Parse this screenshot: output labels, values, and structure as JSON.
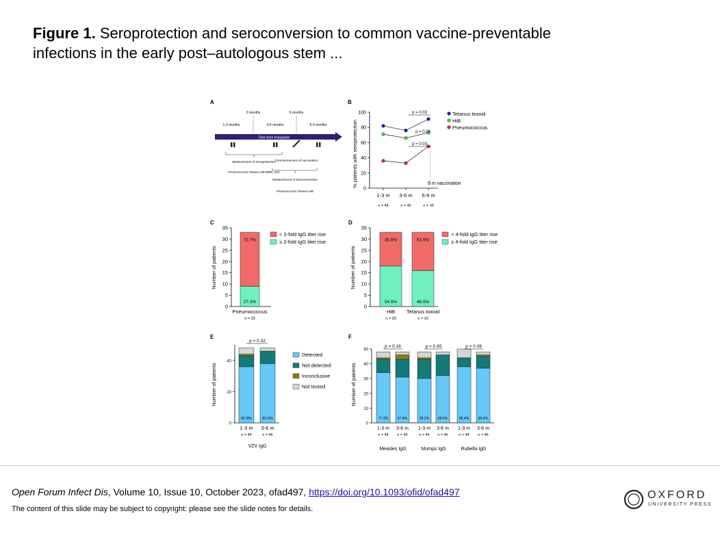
{
  "slide": {
    "figure_label": "Figure 1.",
    "title": "Seroprotection and seroconversion to common vaccine-preventable infections in the early post–autologous stem ...",
    "citation_journal": "Open Forum Infect Dis",
    "citation_details": ", Volume 10, Issue 10, October 2023, ofad497, ",
    "citation_link": "https://doi.org/10.1093/ofid/ofad497",
    "copyright": "The content of this slide may be subject to copyright: please see the slide notes for details.",
    "publisher": "OXFORD",
    "publisher_sub": "UNIVERSITY PRESS"
  },
  "panelA": {
    "label": "A",
    "month_3": "3 months",
    "month_6": "6 months",
    "period_1": "1-3 months",
    "period_2": "3-6 months",
    "period_3": "6-9 months",
    "arrow_text": "Time from transplant",
    "box1_title": "Measurement of seroprotection",
    "box1_items": "Pneumococcus Tetanus HiB MMR, VZV",
    "box2_title": "Commencement of vaccination",
    "box3_title": "Measurement of seroconversion",
    "box3_items": "Pneumococcus Tetanus HiB"
  },
  "chart_data": [
    {
      "panel": "B",
      "type": "line",
      "ylabel": "% patients with seroprotection",
      "categories": [
        "1-3 m",
        "3-6 m",
        "6-9 m"
      ],
      "n_labels": [
        "n = 44",
        "n = 46",
        "n = 33"
      ],
      "ylim": [
        0,
        100
      ],
      "yticks": [
        0,
        20,
        40,
        60,
        80,
        100
      ],
      "series": [
        {
          "name": "Tetanus toxoid",
          "color": "#1a1aa8",
          "values": [
            82,
            76,
            91
          ]
        },
        {
          "name": "HiB",
          "color": "#3fcf3f",
          "values": [
            71,
            66,
            73
          ]
        },
        {
          "name": "Pneumococcus",
          "color": "#c8246e",
          "values": [
            36,
            33,
            55
          ]
        }
      ],
      "annotations": [
        "p = 0.03",
        "p = 0.06",
        "p = 0.03",
        "6 m vaccination"
      ],
      "legend": "top-right"
    },
    {
      "panel": "C",
      "type": "bar",
      "stacked": true,
      "ylabel": "Number of patients",
      "ylim": [
        0,
        35
      ],
      "yticks": [
        0,
        5,
        10,
        15,
        20,
        25,
        30,
        35
      ],
      "categories": [
        "Pneumococcus"
      ],
      "n_labels": [
        "n = 33"
      ],
      "series": [
        {
          "name": "≥ 2-fold IgG titer rise",
          "color": "#6ff0c0",
          "values": [
            9
          ],
          "labels": [
            "27.3%"
          ]
        },
        {
          "name": "< 2-fold IgG titer rise",
          "color": "#f06a6a",
          "values": [
            24
          ],
          "labels": [
            "72.7%"
          ]
        }
      ],
      "legend": "top-right"
    },
    {
      "panel": "D",
      "type": "bar",
      "stacked": true,
      "ylabel": "Number of patients",
      "ylim": [
        0,
        35
      ],
      "yticks": [
        0,
        5,
        10,
        15,
        20,
        25,
        30,
        35
      ],
      "categories": [
        "HiB",
        "Tetanus toxoid"
      ],
      "n_labels": [
        "n = 33",
        "n = 33"
      ],
      "series": [
        {
          "name": "≥ 4-fold IgG titer rise",
          "color": "#6ff0c0",
          "values": [
            18,
            16
          ],
          "labels": [
            "54.5%",
            "48.5%"
          ]
        },
        {
          "name": "< 4-fold IgG titer rise",
          "color": "#f06a6a",
          "values": [
            15,
            17
          ],
          "labels": [
            "45.5%",
            "51.5%"
          ]
        }
      ],
      "legend": "top-right"
    },
    {
      "panel": "E",
      "type": "bar",
      "stacked": true,
      "ylabel": "Number of patients",
      "xlabel": "VZV IgG",
      "ylim": [
        0,
        50
      ],
      "yticks": [
        0,
        20,
        40
      ],
      "categories": [
        "1-3 m",
        "3-6 m"
      ],
      "n_labels": [
        "n = 44",
        "n = 46"
      ],
      "series": [
        {
          "name": "Detected",
          "color": "#66c8f7",
          "values": [
            36,
            38
          ],
          "labels": [
            "81.8%",
            "82.6%"
          ]
        },
        {
          "name": "Not detected",
          "color": "#137a78",
          "values": [
            7,
            8
          ]
        },
        {
          "name": "Inconclusive",
          "color": "#8a7d0c",
          "values": [
            1,
            0
          ]
        },
        {
          "name": "Not tested",
          "color": "#d4d4d4",
          "values": [
            4,
            2
          ]
        }
      ],
      "annotations": [
        "p = 0.32"
      ],
      "legend": "right"
    },
    {
      "panel": "F",
      "type": "bar",
      "stacked": true,
      "ylabel": "Number of patients",
      "ylim": [
        0,
        50
      ],
      "yticks": [
        0,
        10,
        20,
        30,
        40,
        50
      ],
      "categories": [
        "1-3 m",
        "3-6 m",
        "1-3 m",
        "3-6 m",
        "1-3 m",
        "3-6 m"
      ],
      "n_labels": [
        "n = 44",
        "n = 46",
        "n = 44",
        "n = 46",
        "n = 44",
        "n = 46"
      ],
      "groups": [
        "Measles IgG",
        "Mumps IgG",
        "Rubella IgG"
      ],
      "series": [
        {
          "name": "Detected",
          "color": "#66c8f7",
          "values": [
            34,
            31,
            30,
            32,
            38,
            37
          ],
          "labels": [
            "77.3%",
            "67.4%",
            "68.2%",
            "69.6%",
            "86.4%",
            "80.4%"
          ]
        },
        {
          "name": "Not detected",
          "color": "#137a78",
          "values": [
            9,
            12,
            13,
            14,
            6,
            8
          ]
        },
        {
          "name": "Inconclusive",
          "color": "#8a7d0c",
          "values": [
            1,
            3,
            1,
            0,
            0,
            1
          ]
        },
        {
          "name": "Not tested",
          "color": "#d4d4d4",
          "values": [
            4,
            2,
            4,
            2,
            6,
            2
          ]
        }
      ],
      "annotations": [
        "p = 0.16",
        "p = 0.65",
        "p = 0.08"
      ]
    }
  ]
}
